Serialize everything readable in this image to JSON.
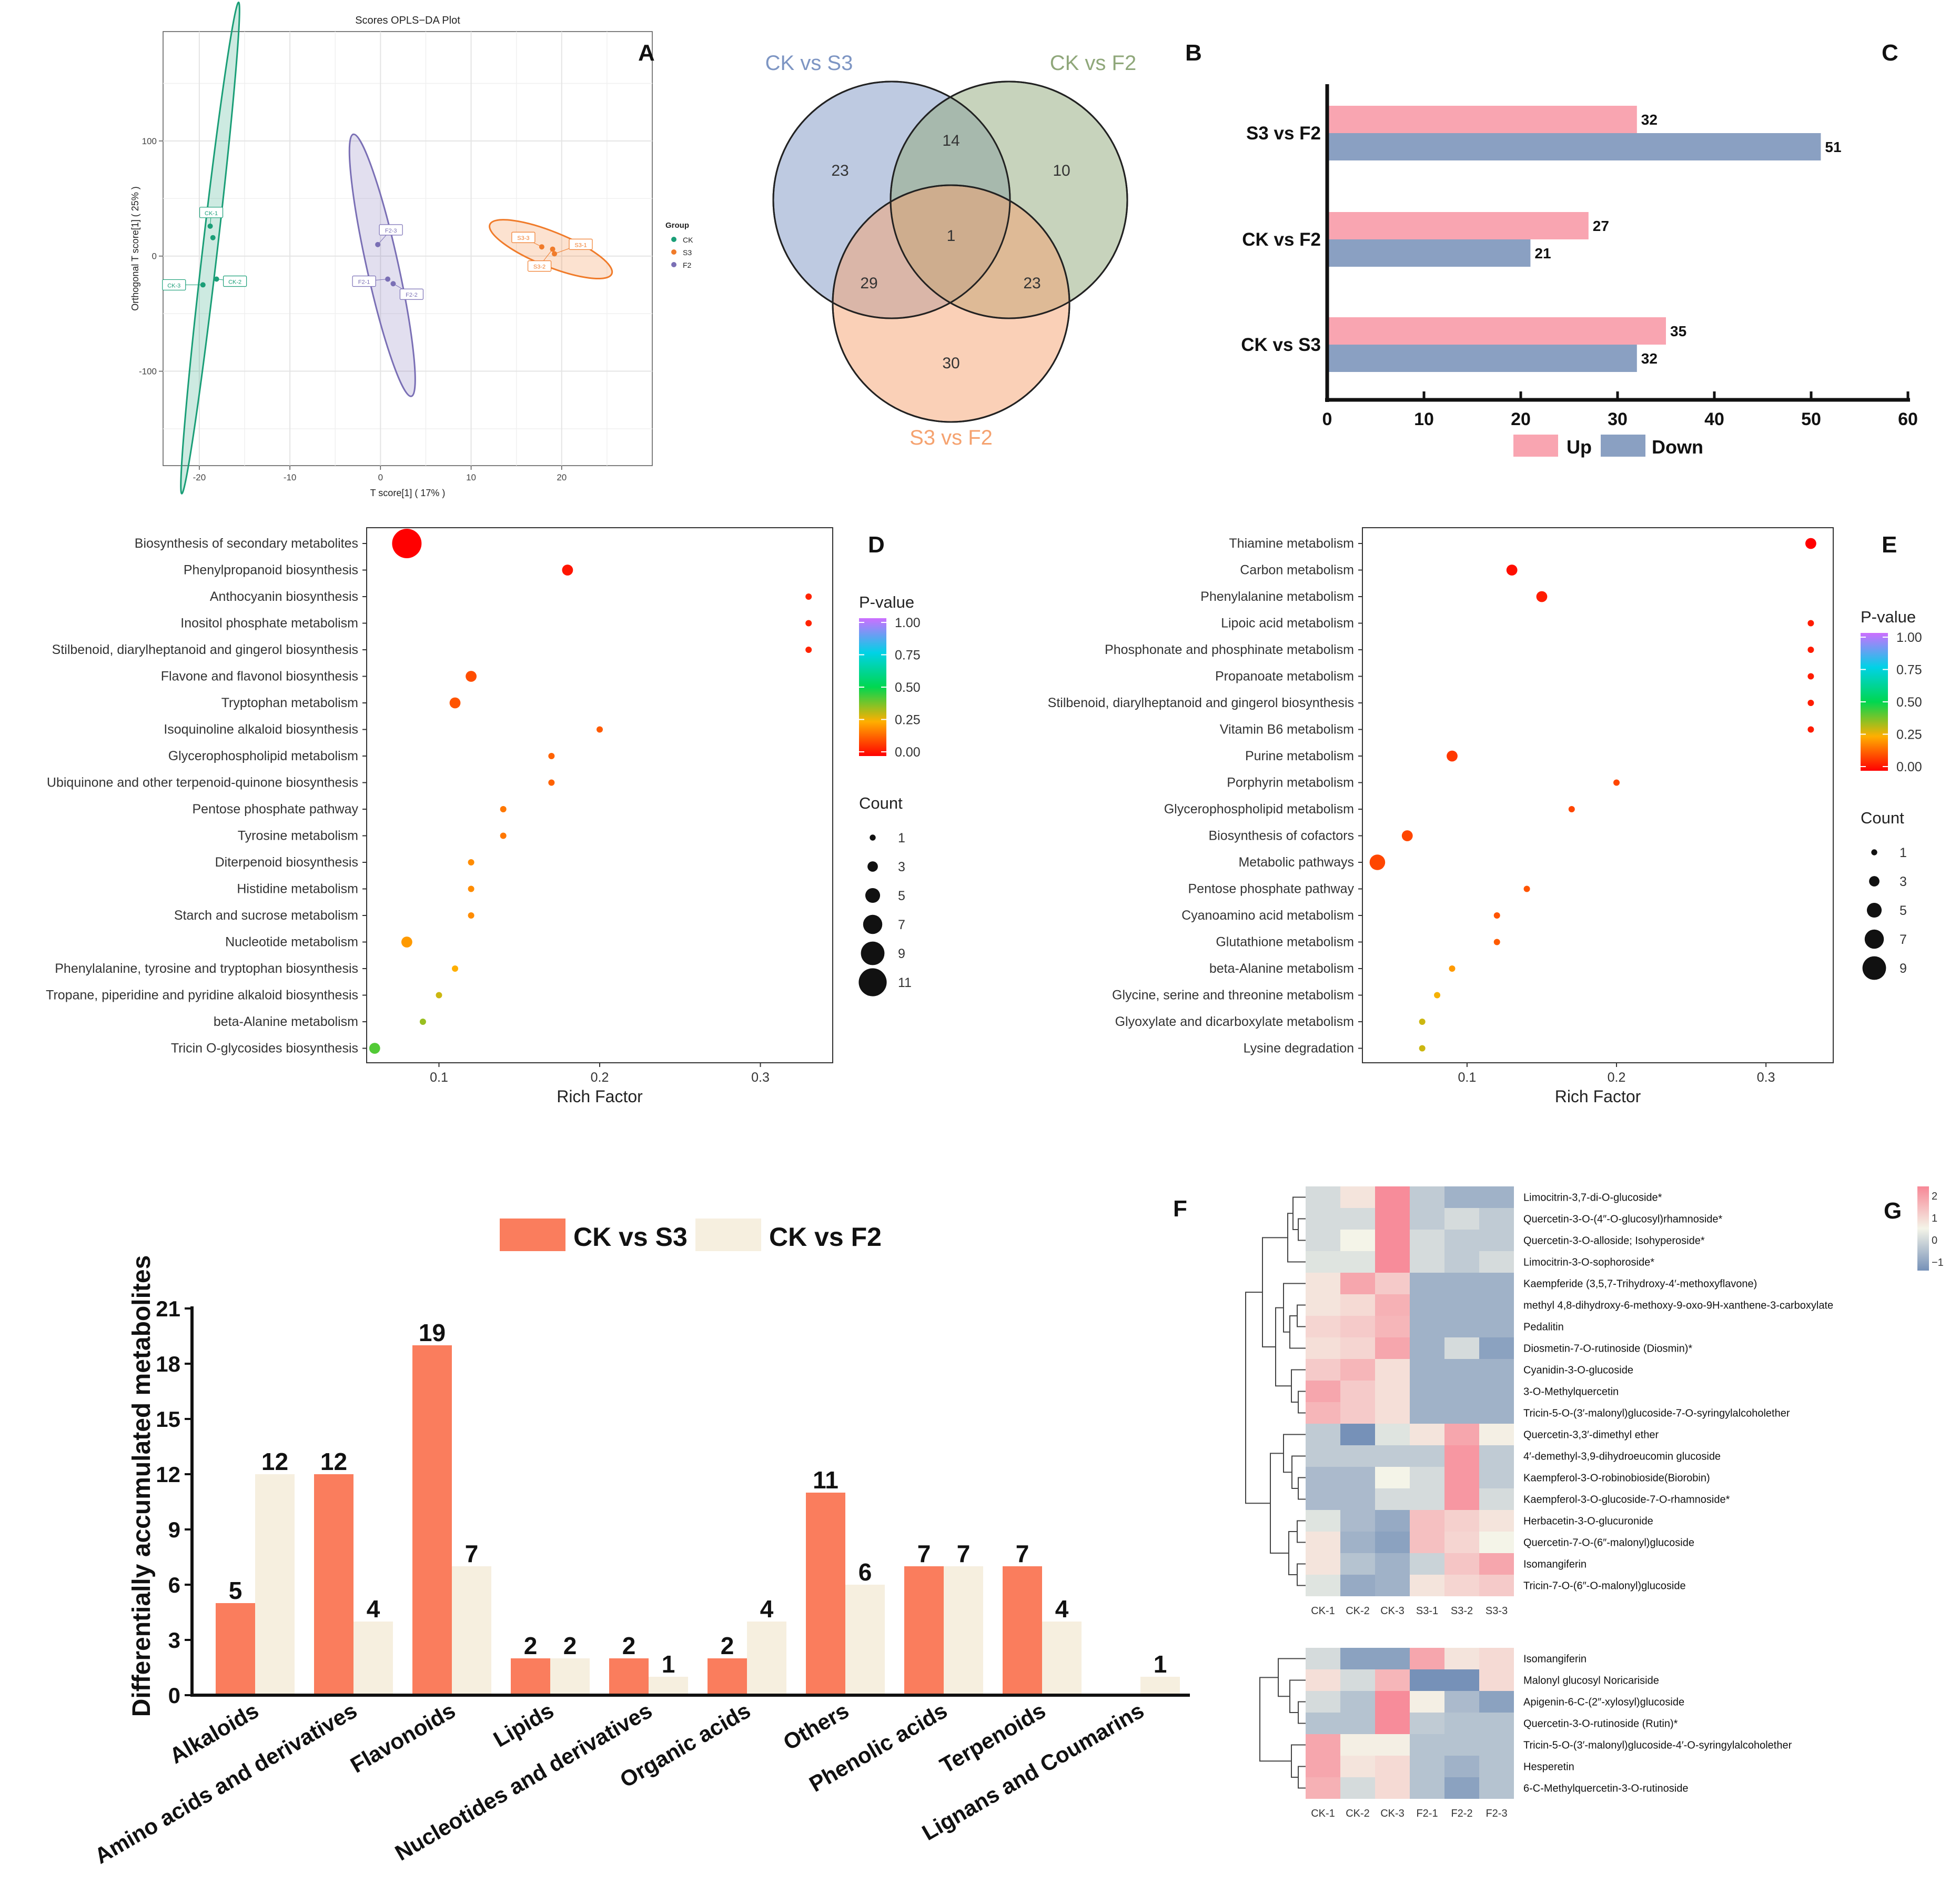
{
  "panel_letters": {
    "a": "A",
    "b": "B",
    "c": "C",
    "d": "D",
    "e": "E",
    "f": "F",
    "g": "G"
  },
  "chart_data": [
    {
      "panel": "A",
      "type": "scatter",
      "title": "Scores OPLS−DA Plot",
      "xlabel": "T score[1] ( 17% )",
      "ylabel": "Orthogonal T score[1] ( 25% )",
      "xlim": [
        -24,
        30
      ],
      "ylim": [
        -182,
        195
      ],
      "xticks": [
        -20,
        -10,
        0,
        10,
        20
      ],
      "yticks": [
        -100,
        0,
        100
      ],
      "grid": true,
      "legend_title": "Group",
      "legend": [
        {
          "name": "CK",
          "color": "#1a9e77"
        },
        {
          "name": "S3",
          "color": "#f07b2a"
        },
        {
          "name": "F2",
          "color": "#7a6fb5"
        }
      ],
      "points": [
        {
          "label": "CK-1",
          "group": "CK",
          "x": -18.8,
          "y": 26
        },
        {
          "label": "CK-2",
          "group": "CK",
          "x": -18.1,
          "y": -20
        },
        {
          "label": "CK-3",
          "group": "CK",
          "x": -19.6,
          "y": -25
        },
        {
          "label": "",
          "group": "CK",
          "x": -18.5,
          "y": 16
        },
        {
          "label": "F2-1",
          "group": "F2",
          "x": 0.8,
          "y": -20
        },
        {
          "label": "F2-2",
          "group": "F2",
          "x": 1.4,
          "y": -24
        },
        {
          "label": "F2-3",
          "group": "F2",
          "x": -0.3,
          "y": 10
        },
        {
          "label": "S3-1",
          "group": "S3",
          "x": 19.2,
          "y": 2
        },
        {
          "label": "S3-2",
          "group": "S3",
          "x": 19.0,
          "y": 6
        },
        {
          "label": "S3-3",
          "group": "S3",
          "x": 17.8,
          "y": 8
        }
      ]
    },
    {
      "panel": "B",
      "type": "venn",
      "sets": [
        {
          "name": "CK vs S3",
          "color": "#7d95c3"
        },
        {
          "name": "CK vs F2",
          "color": "#8fa77a"
        },
        {
          "name": "S3 vs F2",
          "color": "#f5a26f"
        }
      ],
      "regions": {
        "only_CKvsS3": 23,
        "only_CKvsF2": 10,
        "only_S3vsF2": 30,
        "CKvsS3_CKvsF2": 14,
        "CKvsS3_S3vsF2": 29,
        "CKvsF2_S3vsF2": 23,
        "all": 1
      }
    },
    {
      "panel": "C",
      "type": "bar",
      "orientation": "horizontal",
      "categories": [
        "S3 vs F2",
        "CK vs F2",
        "CK vs S3"
      ],
      "series": [
        {
          "name": "Up",
          "color": "#f9a5b1",
          "values": [
            32,
            27,
            35
          ]
        },
        {
          "name": "Down",
          "color": "#8aa0c2",
          "values": [
            51,
            21,
            32
          ]
        }
      ],
      "xlim": [
        0,
        60
      ],
      "xticks": [
        0,
        10,
        20,
        30,
        40,
        50,
        60
      ]
    },
    {
      "panel": "D",
      "type": "scatter",
      "xlabel": "Rich Factor",
      "xlim": [
        0.055,
        0.345
      ],
      "xticks": [
        0.1,
        0.2,
        0.3
      ],
      "color_legend_title": "P-value",
      "color_ticks": [
        "1.00",
        "0.75",
        "0.50",
        "0.25",
        "0.00"
      ],
      "size_legend_title": "Count",
      "size_ticks": [
        1,
        3,
        5,
        7,
        9,
        11
      ],
      "categories": [
        "Biosynthesis of secondary metabolites",
        "Phenylpropanoid biosynthesis",
        "Anthocyanin biosynthesis",
        "Inositol phosphate metabolism",
        "Stilbenoid, diarylheptanoid and gingerol biosynthesis",
        "Flavone and flavonol biosynthesis",
        "Tryptophan metabolism",
        "Isoquinoline alkaloid biosynthesis",
        "Glycerophospholipid metabolism",
        "Ubiquinone and other terpenoid-quinone biosynthesis",
        "Pentose phosphate pathway",
        "Tyrosine metabolism",
        "Diterpenoid biosynthesis",
        "Histidine metabolism",
        "Starch and sucrose metabolism",
        "Nucleotide metabolism",
        "Phenylalanine, tyrosine and tryptophan biosynthesis",
        "Tropane, piperidine and pyridine alkaloid biosynthesis",
        "beta-Alanine metabolism",
        "Tricin O-glycosides biosynthesis"
      ],
      "rich_factor": [
        0.08,
        0.18,
        0.33,
        0.33,
        0.33,
        0.12,
        0.11,
        0.2,
        0.17,
        0.17,
        0.14,
        0.14,
        0.12,
        0.12,
        0.12,
        0.08,
        0.11,
        0.1,
        0.09,
        0.06
      ],
      "count": [
        11,
        3,
        1,
        1,
        1,
        3,
        3,
        1,
        1,
        1,
        1,
        1,
        1,
        1,
        1,
        3,
        1,
        1,
        1,
        3
      ],
      "p_value": [
        0.0,
        0.03,
        0.05,
        0.05,
        0.05,
        0.11,
        0.12,
        0.13,
        0.14,
        0.14,
        0.17,
        0.17,
        0.2,
        0.2,
        0.2,
        0.22,
        0.25,
        0.3,
        0.35,
        0.42
      ]
    },
    {
      "panel": "E",
      "type": "scatter",
      "xlabel": "Rich Factor",
      "xlim": [
        0.03,
        0.345
      ],
      "xticks": [
        0.1,
        0.2,
        0.3
      ],
      "color_legend_title": "P-value",
      "color_ticks": [
        "1.00",
        "0.75",
        "0.50",
        "0.25",
        "0.00"
      ],
      "size_legend_title": "Count",
      "size_ticks": [
        1,
        3,
        5,
        7,
        9
      ],
      "categories": [
        "Thiamine metabolism",
        "Carbon metabolism",
        "Phenylalanine metabolism",
        "Lipoic acid metabolism",
        "Phosphonate and phosphinate metabolism",
        "Propanoate metabolism",
        "Stilbenoid, diarylheptanoid and gingerol biosynthesis",
        "Vitamin B6 metabolism",
        "Purine metabolism",
        "Porphyrin metabolism",
        "Glycerophospholipid metabolism",
        "Biosynthesis of cofactors",
        "Metabolic pathways",
        "Pentose phosphate pathway",
        "Cyanoamino acid metabolism",
        "Glutathione metabolism",
        "beta-Alanine metabolism",
        "Glycine, serine and threonine metabolism",
        "Glyoxylate and dicarboxylate metabolism",
        "Lysine degradation"
      ],
      "rich_factor": [
        0.33,
        0.13,
        0.15,
        0.33,
        0.33,
        0.33,
        0.33,
        0.33,
        0.09,
        0.2,
        0.17,
        0.06,
        0.04,
        0.14,
        0.12,
        0.12,
        0.09,
        0.08,
        0.07,
        0.07
      ],
      "count": [
        3,
        3,
        3,
        1,
        1,
        1,
        1,
        1,
        3,
        1,
        1,
        3,
        5,
        1,
        1,
        1,
        1,
        1,
        1,
        1
      ],
      "p_value": [
        0.0,
        0.02,
        0.04,
        0.04,
        0.04,
        0.04,
        0.04,
        0.04,
        0.08,
        0.1,
        0.1,
        0.1,
        0.1,
        0.12,
        0.12,
        0.13,
        0.22,
        0.26,
        0.3,
        0.3
      ]
    },
    {
      "panel": "F",
      "type": "bar",
      "ylabel": "Differentially accumulated metabolites",
      "ylim": [
        0,
        21
      ],
      "yticks": [
        0,
        3,
        6,
        9,
        12,
        15,
        18,
        21
      ],
      "categories": [
        "Alkaloids",
        "Amino acids and derivatives",
        "Flavonoids",
        "Lipids",
        "Nucleotides and derivatives",
        "Organic acids",
        "Others",
        "Phenolic acids",
        "Terpenoids",
        "Lignans and Coumarins"
      ],
      "series": [
        {
          "name": "CK vs S3",
          "color": "#fa7d5d",
          "values": [
            5,
            12,
            19,
            2,
            2,
            2,
            11,
            7,
            7,
            0
          ]
        },
        {
          "name": "CK vs F2",
          "color": "#f6efdf",
          "values": [
            12,
            4,
            7,
            2,
            1,
            4,
            6,
            7,
            4,
            1
          ]
        }
      ]
    },
    {
      "panel": "G",
      "type": "heatmap",
      "scale_ticks": [
        "2",
        "1",
        "0",
        "−1"
      ],
      "heatmaps": [
        {
          "columns": [
            "CK-1",
            "CK-2",
            "CK-3",
            "S3-1",
            "S3-2",
            "S3-3"
          ],
          "rows": [
            "Limocitrin-3,7-di-O-glucoside*",
            "Quercetin-3-O-(4″-O-glucosyl)rhamnoside*",
            "Quercetin-3-O-alloside; Isohyperoside*",
            "Limocitrin-3-O-sophoroside*",
            "Kaempferide (3,5,7-Trihydroxy-4′-methoxyflavone)",
            "methyl 4,8-dihydroxy-6-methoxy-9-oxo-9H-xanthene-3-carboxylate",
            "Pedalitin",
            "Diosmetin-7-O-rutinoside (Diosmin)*",
            "Cyanidin-3-O-glucoside",
            "3-O-Methylquercetin",
            "Tricin-5-O-(3′-malonyl)glucoside-7-O-syringylalcoholether",
            "Quercetin-3,3′-dimethyl ether",
            "4′-demethyl-3,9-dihydroeucomin glucoside",
            "Kaempferol-3-O-robinobioside(Biorobin)",
            "Kaempferol-3-O-glucoside-7-O-rhamnoside*",
            "Herbacetin-3-O-glucuronide",
            "Quercetin-7-O-(6″-malonyl)glucoside",
            "Isomangiferin",
            "Tricin-7-O-(6″-O-malonyl)glucoside"
          ],
          "values": [
            [
              -0.3,
              0.3,
              2.0,
              -0.5,
              -0.8,
              -0.8
            ],
            [
              -0.3,
              -0.3,
              2.0,
              -0.5,
              -0.3,
              -0.5
            ],
            [
              -0.3,
              0.0,
              2.0,
              -0.3,
              -0.5,
              -0.5
            ],
            [
              -0.2,
              -0.2,
              2.0,
              -0.3,
              -0.5,
              -0.3
            ],
            [
              0.3,
              1.5,
              0.8,
              -0.8,
              -0.8,
              -0.8
            ],
            [
              0.3,
              0.5,
              1.3,
              -0.8,
              -0.8,
              -0.8
            ],
            [
              0.6,
              0.8,
              1.2,
              -0.8,
              -0.8,
              -0.8
            ],
            [
              0.4,
              0.6,
              1.5,
              -0.8,
              -0.3,
              -1.0
            ],
            [
              0.8,
              1.2,
              0.4,
              -0.8,
              -0.8,
              -0.8
            ],
            [
              1.5,
              0.8,
              0.4,
              -0.8,
              -0.8,
              -0.8
            ],
            [
              1.2,
              0.8,
              0.4,
              -0.8,
              -0.8,
              -0.8
            ],
            [
              -0.5,
              -1.2,
              -0.2,
              0.3,
              1.5,
              0.1
            ],
            [
              -0.5,
              -0.5,
              -0.5,
              -0.5,
              1.8,
              -0.5
            ],
            [
              -0.7,
              -0.7,
              0.0,
              -0.3,
              1.8,
              -0.5
            ],
            [
              -0.7,
              -0.7,
              -0.3,
              -0.3,
              1.8,
              -0.3
            ],
            [
              -0.2,
              -0.7,
              -0.9,
              1.0,
              0.7,
              0.3
            ],
            [
              0.3,
              -0.8,
              -1.0,
              1.0,
              0.6,
              0.0
            ],
            [
              0.3,
              -0.6,
              -0.8,
              -0.4,
              0.9,
              1.5
            ],
            [
              -0.2,
              -0.9,
              -0.8,
              0.3,
              0.6,
              0.8
            ]
          ]
        },
        {
          "columns": [
            "CK-1",
            "CK-2",
            "CK-3",
            "F2-1",
            "F2-2",
            "F2-3"
          ],
          "rows": [
            "Isomangiferin",
            "Malonyl glucosyl Noricariside",
            "Apigenin-6-C-(2″-xylosyl)glucoside",
            "Quercetin-3-O-rutinoside (Rutin)*",
            "Tricin-5-O-(3′-malonyl)glucoside-4′-O-syringylalcoholether",
            "Hesperetin",
            "6-C-Methylquercetin-3-O-rutinoside"
          ],
          "values": [
            [
              -0.3,
              -1.0,
              -1.0,
              1.5,
              0.3,
              0.5
            ],
            [
              0.4,
              -0.3,
              1.2,
              -1.2,
              -1.2,
              0.5
            ],
            [
              -0.3,
              -0.6,
              2.0,
              0.1,
              -0.7,
              -1.0
            ],
            [
              -0.6,
              -0.6,
              2.0,
              -0.5,
              -0.6,
              -0.6
            ],
            [
              1.5,
              0.1,
              0.1,
              -0.6,
              -0.6,
              -0.6
            ],
            [
              1.5,
              0.3,
              0.5,
              -0.6,
              -0.8,
              -0.6
            ],
            [
              1.3,
              -0.3,
              0.5,
              -0.6,
              -1.0,
              -0.6
            ]
          ]
        }
      ]
    }
  ]
}
